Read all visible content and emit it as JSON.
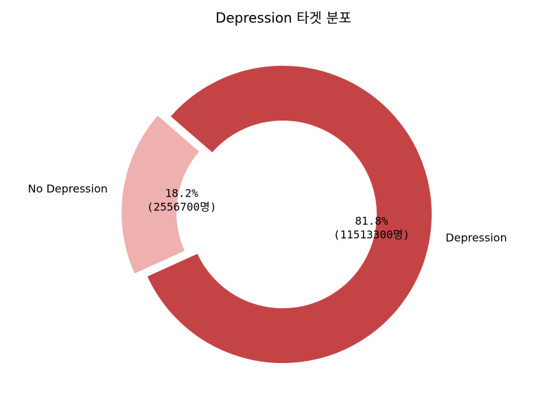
{
  "chart_data": {
    "type": "pie",
    "title": "Depression 타겟 분포",
    "categories": [
      "No Depression",
      "Depression"
    ],
    "values": [
      2556700,
      11513300
    ],
    "percent_labels": [
      "18.2%",
      "81.8%"
    ],
    "count_labels": [
      "(2556700명)",
      "(11513300명)"
    ],
    "colors": [
      "#efb0b0",
      "#c44446"
    ],
    "donut": true,
    "exploded": "No Depression",
    "legend": "none"
  }
}
